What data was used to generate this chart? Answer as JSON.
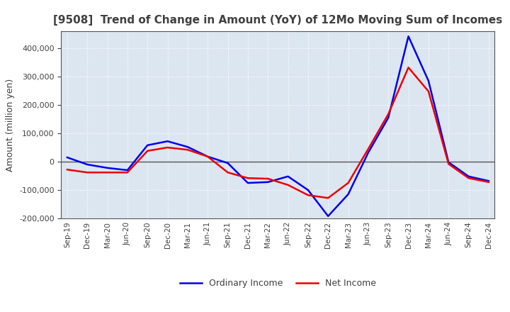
{
  "title": "[9508]  Trend of Change in Amount (YoY) of 12Mo Moving Sum of Incomes",
  "ylabel": "Amount (million yen)",
  "x_labels": [
    "Sep-19",
    "Dec-19",
    "Mar-20",
    "Jun-20",
    "Sep-20",
    "Dec-20",
    "Mar-21",
    "Jun-21",
    "Sep-21",
    "Dec-21",
    "Mar-22",
    "Jun-22",
    "Sep-22",
    "Dec-22",
    "Mar-23",
    "Jun-23",
    "Sep-23",
    "Dec-23",
    "Mar-24",
    "Jun-24",
    "Sep-24",
    "Dec-24"
  ],
  "ordinary_income": [
    15000,
    -10000,
    -22000,
    -30000,
    58000,
    72000,
    52000,
    18000,
    -5000,
    -75000,
    -72000,
    -52000,
    -100000,
    -192000,
    -115000,
    32000,
    155000,
    442000,
    285000,
    -2000,
    -52000,
    -68000
  ],
  "net_income": [
    -28000,
    -38000,
    -38000,
    -38000,
    38000,
    50000,
    42000,
    18000,
    -38000,
    -58000,
    -60000,
    -82000,
    -118000,
    -128000,
    -75000,
    45000,
    168000,
    332000,
    248000,
    -8000,
    -58000,
    -72000
  ],
  "ordinary_income_color": "#0000ee",
  "net_income_color": "#ee0000",
  "ylim": [
    -200000,
    460000
  ],
  "yticks": [
    -200000,
    -100000,
    0,
    100000,
    200000,
    300000,
    400000
  ],
  "plot_bg_color": "#dce6f1",
  "fig_bg_color": "#ffffff",
  "grid_color": "#ffffff",
  "zero_line_color": "#555555",
  "line_width": 1.8,
  "legend_labels": [
    "Ordinary Income",
    "Net Income"
  ],
  "title_color": "#404040",
  "tick_color": "#404040"
}
